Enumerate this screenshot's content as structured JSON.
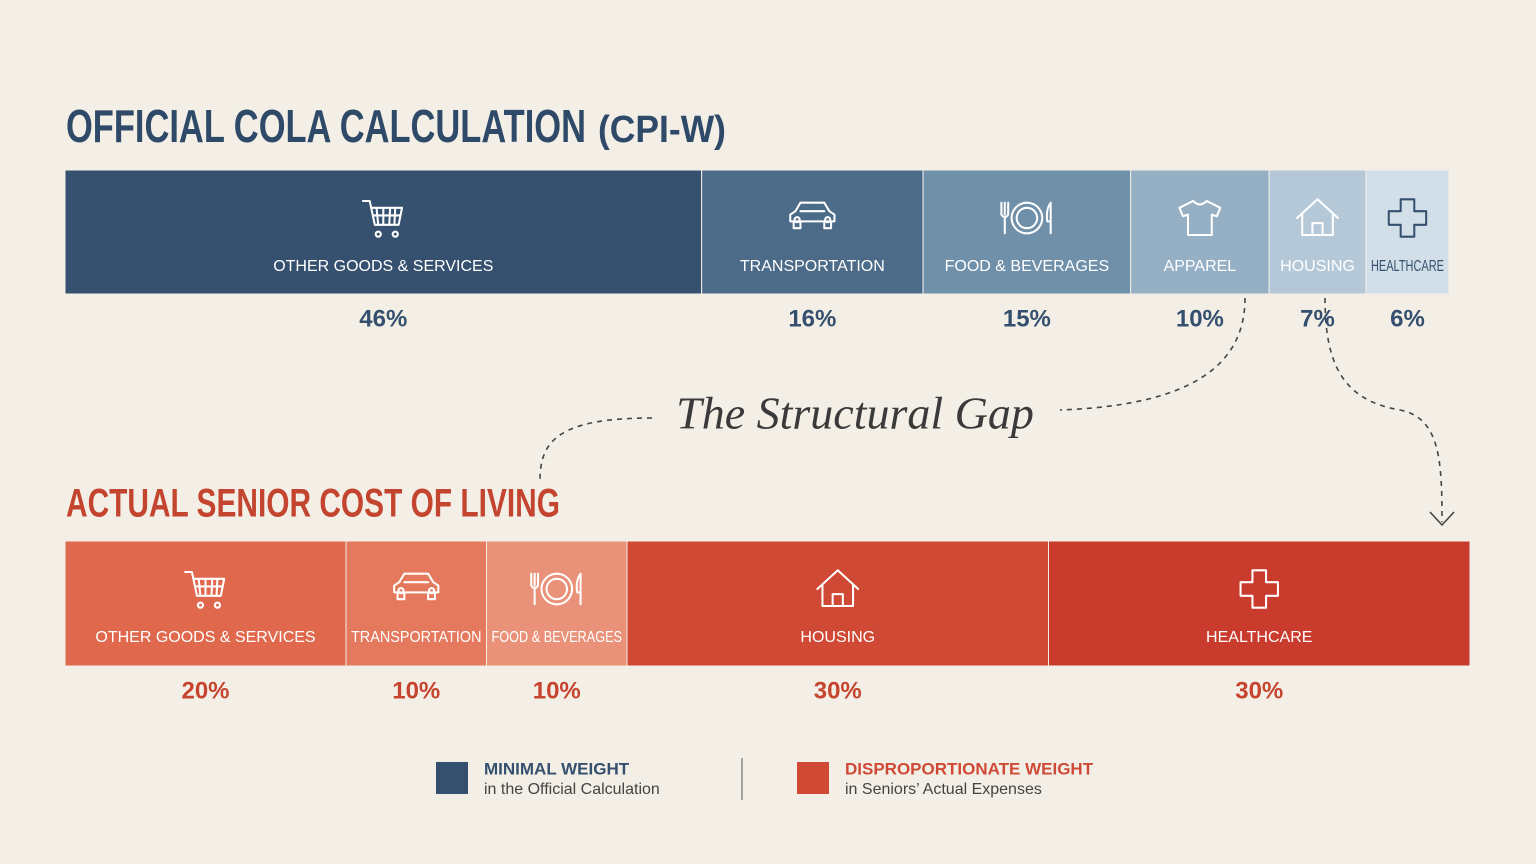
{
  "chart_data": [
    {
      "type": "stacked_bar",
      "title": "OFFICIAL COLA CALCULATION",
      "subtitle": "(CPI-W)",
      "categories": [
        "OTHER GOODS & SERVICES",
        "TRANSPORTATION",
        "FOOD & BEVERAGES",
        "APPAREL",
        "HOUSING",
        "HEALTHCARE"
      ],
      "values": [
        46,
        16,
        15,
        10,
        7,
        6
      ],
      "value_labels": [
        "46%",
        "16%",
        "15%",
        "10%",
        "7%",
        "6%"
      ],
      "colors": [
        "#36506f",
        "#4c6b89",
        "#7090aa",
        "#95afc4",
        "#b5c8d8",
        "#d2dee8"
      ],
      "label_color": "#34506e"
    },
    {
      "type": "stacked_bar",
      "title": "ACTUAL SENIOR COST OF LIVING",
      "categories": [
        "OTHER GOODS & SERVICES",
        "TRANSPORTATION",
        "FOOD & BEVERAGES",
        "HOUSING",
        "HEALTHCARE"
      ],
      "values": [
        20,
        10,
        10,
        30,
        30
      ],
      "value_labels": [
        "20%",
        "10%",
        "10%",
        "30%",
        "30%"
      ],
      "colors": [
        "#df684d",
        "#e5795e",
        "#ea9279",
        "#cf4934",
        "#c83b2d"
      ],
      "label_color": "#c6442e"
    }
  ],
  "annotation": "The Structural Gap",
  "legend": [
    {
      "label": "MINIMAL WEIGHT",
      "sublabel": "in the Official Calculation",
      "color": "#34506e"
    },
    {
      "label": "DISPROPORTIONATE WEIGHT",
      "sublabel": "in Seniors’ Actual Expenses",
      "color": "#cf4934"
    }
  ]
}
